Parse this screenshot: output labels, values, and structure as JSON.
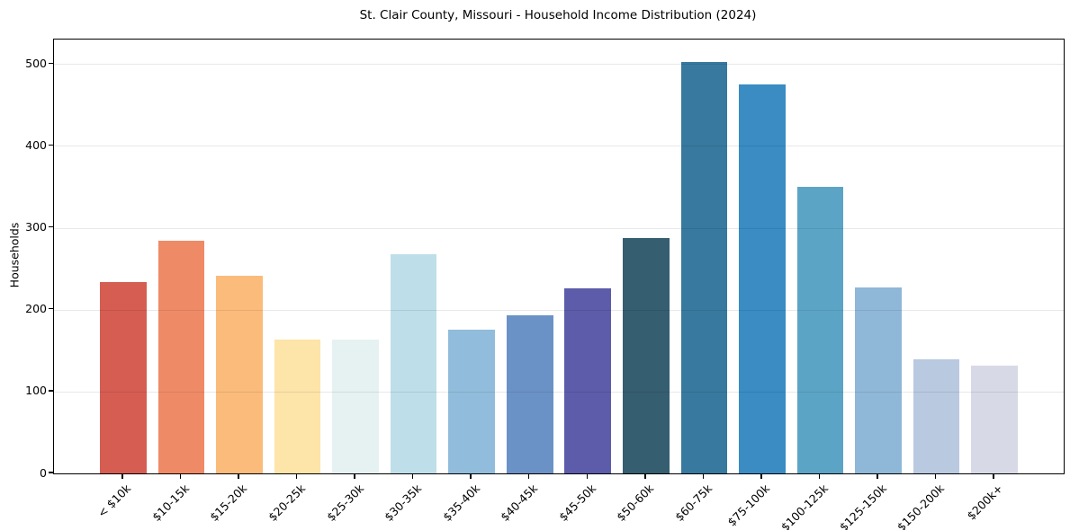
{
  "chart_data": {
    "type": "bar",
    "title": "St. Clair County, Missouri - Household Income Distribution (2024)",
    "xlabel": "",
    "ylabel": "Households",
    "categories": [
      "< $10k",
      "$10-15k",
      "$15-20k",
      "$20-25k",
      "$25-30k",
      "$30-35k",
      "$35-40k",
      "$40-45k",
      "$45-50k",
      "$50-60k",
      "$60-75k",
      "$75-100k",
      "$100-125k",
      "$125-150k",
      "$150-200k",
      "$200k+"
    ],
    "values": [
      234,
      284,
      241,
      163,
      164,
      268,
      176,
      193,
      226,
      287,
      503,
      475,
      350,
      227,
      139,
      132
    ],
    "bar_colors": [
      "#d65d52",
      "#ef8a67",
      "#fbbb7b",
      "#fde4a8",
      "#e6f2f2",
      "#bedfe9",
      "#91bcdb",
      "#6b92c6",
      "#5c5caa",
      "#355e70",
      "#38799f",
      "#3a8cc3",
      "#5ca4c6",
      "#8fb7d7",
      "#b9c9e0",
      "#d7d9e6"
    ],
    "ylim": [
      0,
      530
    ],
    "yticks": [
      0,
      100,
      200,
      300,
      400,
      500
    ],
    "grid": "horizontal-over-bars",
    "grid_color": "rgba(0,0,0,0.09)",
    "legend": "none",
    "x_tick_rotation": 45,
    "spine_color": "#000000",
    "background_color": "#ffffff",
    "bar_relative_width": 0.8
  }
}
